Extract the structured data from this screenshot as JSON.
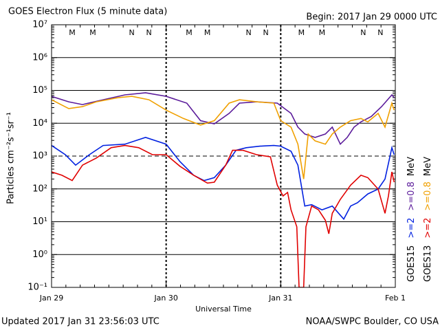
{
  "chart_data": {
    "type": "line",
    "title": "GOES Electron Flux (5 minute data)",
    "subtitle": "Begin: 2017 Jan 29 0000 UTC",
    "x_label": "Universal Time",
    "y_label": "Particles cm⁻²s⁻¹sr⁻¹",
    "footer_left": "Updated 2017 Jan 31 23:56:03 UTC",
    "footer_right": "NOAA/SWPC Boulder, CO USA",
    "log_y": true,
    "grid": true,
    "threshold": 1000,
    "ylim": [
      0.1,
      10000000
    ],
    "yticks": [
      {
        "value": 0.1,
        "label": "10⁻¹"
      },
      {
        "value": 1,
        "label": "10⁰"
      },
      {
        "value": 10,
        "label": "10¹"
      },
      {
        "value": 100,
        "label": "10²"
      },
      {
        "value": 1000,
        "label": "10³"
      },
      {
        "value": 10000,
        "label": "10⁴"
      },
      {
        "value": 100000,
        "label": "10⁵"
      },
      {
        "value": 1000000,
        "label": "10⁶"
      },
      {
        "value": 10000000,
        "label": "10⁷"
      }
    ],
    "xlim": [
      0,
      3
    ],
    "xticks": [
      {
        "value": 0,
        "label": "Jan 29"
      },
      {
        "value": 1,
        "label": "Jan 30"
      },
      {
        "value": 2,
        "label": "Jan 31"
      },
      {
        "value": 3,
        "label": "Feb 1"
      }
    ],
    "legend_unit": "MeV",
    "markers": [
      {
        "label": "M",
        "x": 0.18,
        "color": "#e00000"
      },
      {
        "label": "M",
        "x": 0.36,
        "color": "#0000d0"
      },
      {
        "label": "N",
        "x": 0.7,
        "color": "#e00000"
      },
      {
        "label": "N",
        "x": 0.85,
        "color": "#0000d0"
      },
      {
        "label": "M",
        "x": 1.2,
        "color": "#e00000"
      },
      {
        "label": "M",
        "x": 1.36,
        "color": "#0000d0"
      },
      {
        "label": "N",
        "x": 1.72,
        "color": "#e00000"
      },
      {
        "label": "N",
        "x": 1.87,
        "color": "#0000d0"
      },
      {
        "label": "M",
        "x": 2.18,
        "color": "#e00000"
      },
      {
        "label": "M",
        "x": 2.36,
        "color": "#0000d0"
      },
      {
        "label": "N",
        "x": 2.72,
        "color": "#e00000"
      },
      {
        "label": "N",
        "x": 2.87,
        "color": "#0000d0"
      }
    ],
    "satellites": [
      {
        "name": "GOES15",
        "series": [
          {
            "name": ">=2",
            "color": "#0020e0",
            "x": [
              0,
              0.12,
              0.21,
              0.33,
              0.45,
              0.64,
              0.82,
              1.0,
              1.12,
              1.24,
              1.33,
              1.42,
              1.52,
              1.61,
              1.7,
              1.82,
              1.94,
              2.0,
              2.09,
              2.15,
              2.21,
              2.27,
              2.36,
              2.45,
              2.55,
              2.61,
              2.67,
              2.76,
              2.85,
              2.91,
              2.97,
              2.99
            ],
            "values": [
              2100,
              1100,
              530,
              1100,
              2100,
              2300,
              3700,
              2300,
              680,
              260,
              180,
              220,
              530,
              1500,
              1800,
              2000,
              2100,
              2000,
              1400,
              530,
              30,
              33,
              23,
              30,
              12,
              30,
              38,
              70,
              99,
              200,
              1800,
              1100
            ]
          },
          {
            "name": ">=0.8",
            "color": "#5a1a9a",
            "x": [
              0,
              0.15,
              0.27,
              0.45,
              0.64,
              0.82,
              1.0,
              1.18,
              1.3,
              1.42,
              1.55,
              1.64,
              1.79,
              1.97,
              2.09,
              2.15,
              2.21,
              2.3,
              2.39,
              2.45,
              2.52,
              2.58,
              2.64,
              2.7,
              2.79,
              2.88,
              2.97,
              2.99
            ],
            "values": [
              66000,
              45000,
              37000,
              52000,
              73000,
              85000,
              66000,
              41000,
              12000,
              9600,
              20000,
              41000,
              45000,
              41000,
              20000,
              7600,
              4700,
              3700,
              4700,
              7600,
              2300,
              3700,
              7600,
              11000,
              16000,
              32000,
              73000,
              60000
            ]
          }
        ]
      },
      {
        "name": "GOES13",
        "series": [
          {
            "name": ">=2",
            "color": "#e00000",
            "x": [
              0,
              0.09,
              0.18,
              0.27,
              0.39,
              0.52,
              0.64,
              0.76,
              0.88,
              1.0,
              1.12,
              1.24,
              1.36,
              1.42,
              1.52,
              1.58,
              1.67,
              1.79,
              1.91,
              1.97,
              2.02,
              2.06,
              2.09,
              2.14,
              2.16,
              2.2,
              2.22,
              2.27,
              2.33,
              2.39,
              2.42,
              2.45,
              2.52,
              2.61,
              2.7,
              2.76,
              2.85,
              2.91,
              2.94,
              2.97,
              2.99
            ],
            "values": [
              330,
              260,
              180,
              530,
              870,
              1800,
              2100,
              1800,
              1100,
              1100,
              490,
              260,
              150,
              160,
              530,
              1500,
              1500,
              1100,
              950,
              130,
              61,
              78,
              23,
              7,
              0.1,
              0.1,
              7,
              30,
              23,
              11,
              4.3,
              18,
              48,
              130,
              260,
              220,
              99,
              18,
              61,
              330,
              160
            ]
          },
          {
            "name": ">=0.8",
            "color": "#f0a000",
            "x": [
              0,
              0.15,
              0.27,
              0.39,
              0.58,
              0.7,
              0.85,
              1.0,
              1.15,
              1.3,
              1.42,
              1.55,
              1.64,
              1.79,
              1.94,
              2.0,
              2.09,
              2.15,
              2.2,
              2.24,
              2.3,
              2.39,
              2.45,
              2.52,
              2.61,
              2.7,
              2.76,
              2.85,
              2.91,
              2.97,
              2.99
            ],
            "values": [
              52000,
              28000,
              32000,
              45000,
              60000,
              66000,
              52000,
              25000,
              14000,
              8800,
              12000,
              41000,
              52000,
              45000,
              41000,
              12000,
              7600,
              2300,
              200,
              4700,
              2900,
              2300,
              4700,
              7600,
              12000,
              14000,
              11000,
              20000,
              7600,
              41000,
              25000
            ]
          }
        ]
      }
    ]
  }
}
